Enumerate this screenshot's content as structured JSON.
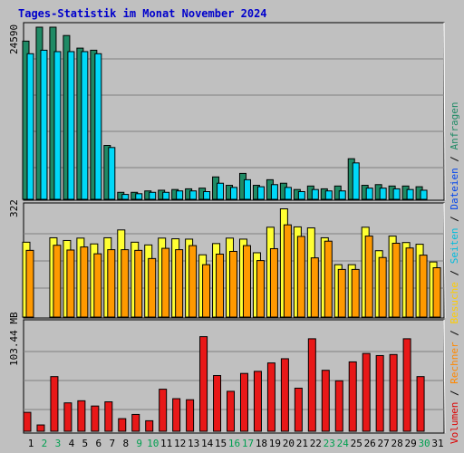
{
  "title": "Tages-Statistik im Monat November 2024",
  "colors": {
    "background": "#c0c0c0",
    "title": "#0000cc",
    "grid": "#808080",
    "anfragen": "#1f8a65",
    "dateien": "#00d8f8",
    "seiten": "#ff9900",
    "besuche": "#ffff33",
    "volumen": "#e81818",
    "weekday_label": "#000000",
    "weekend_label": "#00a050"
  },
  "right_labels": {
    "top": [
      {
        "text": "Anfragen",
        "color": "#1f8a65"
      },
      {
        "text": " / ",
        "color": "#000000"
      },
      {
        "text": "Dateien",
        "color": "#0044ee"
      }
    ],
    "middle": [
      {
        "text": " / ",
        "color": "#000000"
      },
      {
        "text": "Seiten",
        "color": "#00bbdd"
      },
      {
        "text": " / ",
        "color": "#000000"
      },
      {
        "text": "Besuche",
        "color": "#ffcc00"
      }
    ],
    "bottom": [
      {
        "text": " / ",
        "color": "#000000"
      },
      {
        "text": "Rechner",
        "color": "#ff8800"
      },
      {
        "text": " / ",
        "color": "#000000"
      },
      {
        "text": "Volumen",
        "color": "#dd0000"
      }
    ]
  },
  "chart_data": [
    {
      "type": "bar",
      "name": "anfragen-dateien",
      "y_label": "24590",
      "ylim": [
        0,
        24590
      ],
      "x": [
        "1",
        "2",
        "3",
        "4",
        "5",
        "6",
        "7",
        "8",
        "9",
        "10",
        "11",
        "12",
        "13",
        "14",
        "15",
        "16",
        "17",
        "18",
        "19",
        "20",
        "21",
        "22",
        "23",
        "24",
        "25",
        "26",
        "27",
        "28",
        "29",
        "30",
        "31"
      ],
      "series": [
        {
          "name": "Anfragen",
          "color": "#1f8a65",
          "values": [
            22600,
            24590,
            24590,
            23400,
            21600,
            21300,
            7700,
            1000,
            1000,
            1200,
            1300,
            1400,
            1500,
            1600,
            3200,
            2000,
            3700,
            2000,
            2800,
            2300,
            1400,
            1900,
            1500,
            1900,
            5800,
            2000,
            2100,
            1900,
            1900,
            1800,
            0
          ]
        },
        {
          "name": "Dateien",
          "color": "#00d8f8",
          "values": [
            20800,
            21300,
            21100,
            21100,
            21100,
            20800,
            7400,
            700,
            800,
            1000,
            1000,
            1200,
            1200,
            1100,
            2300,
            1700,
            2800,
            1800,
            2100,
            1700,
            1100,
            1400,
            1200,
            1200,
            5200,
            1600,
            1600,
            1500,
            1400,
            1300,
            0
          ]
        }
      ]
    },
    {
      "type": "bar",
      "name": "seiten-besuche",
      "y_label": "322",
      "ylim": [
        0,
        322
      ],
      "series": [
        {
          "name": "Besuche",
          "color": "#ffff33",
          "values": [
            220,
            0,
            233,
            225,
            232,
            215,
            233,
            256,
            220,
            212,
            232,
            230,
            229,
            183,
            216,
            232,
            229,
            189,
            264,
            318,
            265,
            262,
            233,
            154,
            154,
            264,
            195,
            238,
            219,
            214,
            162
          ]
        },
        {
          "name": "Seiten",
          "color": "#ff9900",
          "values": [
            196,
            0,
            211,
            197,
            206,
            186,
            198,
            198,
            196,
            172,
            202,
            198,
            210,
            154,
            185,
            193,
            210,
            166,
            201,
            271,
            237,
            174,
            223,
            140,
            140,
            238,
            175,
            217,
            203,
            182,
            145
          ]
        }
      ]
    },
    {
      "type": "bar",
      "name": "volumen",
      "y_label": "103.44 MB",
      "ylim": [
        0,
        103.44
      ],
      "series": [
        {
          "name": "Volumen",
          "color": "#e81818",
          "values": [
            18,
            6,
            52,
            27,
            29,
            24,
            28,
            12,
            16,
            10,
            40,
            31,
            30,
            90,
            53,
            38,
            55,
            57,
            65,
            69,
            41,
            88,
            58,
            48,
            66,
            74,
            72,
            73,
            88,
            52,
            0
          ]
        }
      ]
    }
  ]
}
